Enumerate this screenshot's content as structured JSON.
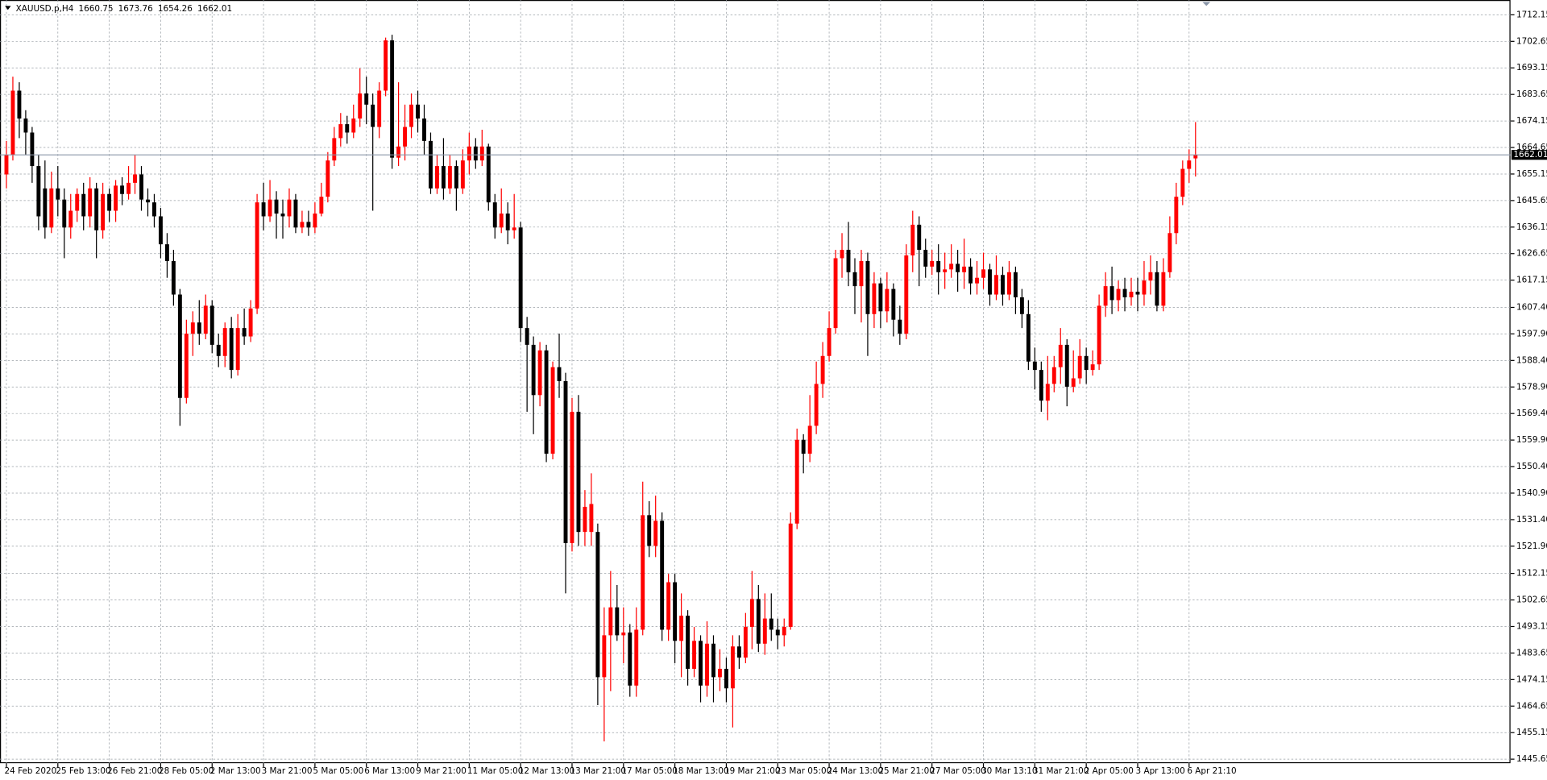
{
  "chart_data": {
    "type": "candlestick",
    "header": {
      "symbol": "XAUUSD.p,H4",
      "open": 1660.75,
      "high": 1673.76,
      "low": 1654.26,
      "close": 1662.01
    },
    "bull_color": "#ff0000",
    "bear_color": "#000000",
    "grid": true,
    "current_price": 1662.01,
    "current_price_color": "#8a96a8",
    "xlim": [
      -1,
      234
    ],
    "ylim": [
      1444.2,
      1717.45
    ],
    "yticks": [
      1712.15,
      1702.65,
      1693.15,
      1683.65,
      1674.15,
      1664.65,
      1655.15,
      1645.65,
      1636.15,
      1626.65,
      1617.15,
      {
        "value": 1607.4,
        "label": "1607.40"
      },
      {
        "value": 1597.9,
        "label": "1597.90"
      },
      {
        "value": 1588.4,
        "label": "1588.40"
      },
      {
        "value": 1578.9,
        "label": "1578.90"
      },
      {
        "value": 1569.4,
        "label": "1569.40"
      },
      {
        "value": 1559.9,
        "label": "1559.90"
      },
      {
        "value": 1550.4,
        "label": "1550.40"
      },
      {
        "value": 1540.9,
        "label": "1540.90"
      },
      {
        "value": 1531.4,
        "label": "1531.40"
      },
      {
        "value": 1521.9,
        "label": "1521.90"
      },
      1512.15,
      1502.65,
      1493.15,
      1483.65,
      1474.15,
      1464.65,
      1455.15,
      1445.65
    ],
    "xticks": [
      {
        "value": 0,
        "label": "24 Feb 2020"
      },
      {
        "value": 8,
        "label": "25 Feb 13:00"
      },
      {
        "value": 16,
        "label": "26 Feb 21:00"
      },
      {
        "value": 24,
        "label": "28 Feb 05:00"
      },
      {
        "value": 32,
        "label": "2 Mar 13:00"
      },
      {
        "value": 40,
        "label": "3 Mar 21:00"
      },
      {
        "value": 48,
        "label": "5 Mar 05:00"
      },
      {
        "value": 56,
        "label": "6 Mar 13:00"
      },
      {
        "value": 64,
        "label": "9 Mar 21:00"
      },
      {
        "value": 72,
        "label": "11 Mar 05:00"
      },
      {
        "value": 80,
        "label": "12 Mar 13:00"
      },
      {
        "value": 88,
        "label": "13 Mar 21:00"
      },
      {
        "value": 96,
        "label": "17 Mar 05:00"
      },
      {
        "value": 104,
        "label": "18 Mar 13:00"
      },
      {
        "value": 112,
        "label": "19 Mar 21:00"
      },
      {
        "value": 120,
        "label": "23 Mar 05:00"
      },
      {
        "value": 128,
        "label": "24 Mar 13:00"
      },
      {
        "value": 136,
        "label": "25 Mar 21:00"
      },
      {
        "value": 144,
        "label": "27 Mar 05:00"
      },
      {
        "value": 152,
        "label": "30 Mar 13:10"
      },
      {
        "value": 160,
        "label": "31 Mar 21:00"
      },
      {
        "value": 168,
        "label": "2 Apr 05:00"
      },
      {
        "value": 176,
        "label": "3 Apr 13:00"
      },
      {
        "value": 184,
        "label": "6 Apr 21:10"
      }
    ],
    "ohlc": [
      [
        1655,
        1667,
        1650,
        1662
      ],
      [
        1662,
        1690,
        1660,
        1685
      ],
      [
        1685,
        1688,
        1668,
        1675
      ],
      [
        1675,
        1678,
        1662,
        1670
      ],
      [
        1670,
        1672,
        1652,
        1658
      ],
      [
        1658,
        1662,
        1635,
        1640
      ],
      [
        1650,
        1660,
        1632,
        1636
      ],
      [
        1636,
        1656,
        1634,
        1650
      ],
      [
        1650,
        1658,
        1640,
        1646
      ],
      [
        1646,
        1650,
        1625,
        1636
      ],
      [
        1636,
        1648,
        1632,
        1642
      ],
      [
        1642,
        1650,
        1638,
        1648
      ],
      [
        1648,
        1652,
        1635,
        1640
      ],
      [
        1640,
        1654,
        1636,
        1650
      ],
      [
        1650,
        1652,
        1625,
        1635
      ],
      [
        1635,
        1652,
        1632,
        1648
      ],
      [
        1648,
        1650,
        1638,
        1642
      ],
      [
        1642,
        1653,
        1638,
        1651
      ],
      [
        1651,
        1654,
        1644,
        1648
      ],
      [
        1648,
        1658,
        1646,
        1652
      ],
      [
        1652,
        1662,
        1648,
        1655
      ],
      [
        1655,
        1658,
        1642,
        1646
      ],
      [
        1646,
        1650,
        1640,
        1645
      ],
      [
        1645,
        1648,
        1636,
        1640
      ],
      [
        1640,
        1643,
        1625,
        1630
      ],
      [
        1630,
        1634,
        1618,
        1624
      ],
      [
        1624,
        1628,
        1608,
        1612
      ],
      [
        1612,
        1614,
        1565,
        1575
      ],
      [
        1575,
        1603,
        1573,
        1598
      ],
      [
        1598,
        1606,
        1590,
        1602
      ],
      [
        1602,
        1610,
        1594,
        1598
      ],
      [
        1598,
        1612,
        1596,
        1608
      ],
      [
        1608,
        1610,
        1591,
        1594
      ],
      [
        1594,
        1598,
        1586,
        1590
      ],
      [
        1590,
        1602,
        1586,
        1600
      ],
      [
        1600,
        1604,
        1582,
        1585
      ],
      [
        1585,
        1605,
        1583,
        1600
      ],
      [
        1600,
        1607,
        1594,
        1597
      ],
      [
        1597,
        1610,
        1595,
        1607
      ],
      [
        1607,
        1648,
        1605,
        1645
      ],
      [
        1645,
        1652,
        1635,
        1640
      ],
      [
        1640,
        1653,
        1638,
        1646
      ],
      [
        1646,
        1649,
        1632,
        1641
      ],
      [
        1641,
        1646,
        1632,
        1640
      ],
      [
        1640,
        1650,
        1636,
        1646
      ],
      [
        1646,
        1648,
        1634,
        1636
      ],
      [
        1636,
        1642,
        1634,
        1638
      ],
      [
        1638,
        1642,
        1633,
        1636
      ],
      [
        1636,
        1645,
        1634,
        1641
      ],
      [
        1641,
        1652,
        1640,
        1647
      ],
      [
        1647,
        1663,
        1645,
        1660
      ],
      [
        1660,
        1672,
        1658,
        1668
      ],
      [
        1668,
        1677,
        1665,
        1673
      ],
      [
        1673,
        1676,
        1666,
        1670
      ],
      [
        1670,
        1680,
        1668,
        1675
      ],
      [
        1675,
        1693,
        1672,
        1684
      ],
      [
        1684,
        1690,
        1673,
        1680
      ],
      [
        1680,
        1684,
        1642,
        1672
      ],
      [
        1672,
        1688,
        1668,
        1685
      ],
      [
        1685,
        1704,
        1683,
        1703
      ],
      [
        1703,
        1705,
        1657,
        1661
      ],
      [
        1661,
        1688,
        1658,
        1665
      ],
      [
        1665,
        1680,
        1660,
        1672
      ],
      [
        1672,
        1684,
        1668,
        1680
      ],
      [
        1680,
        1685,
        1670,
        1675
      ],
      [
        1675,
        1680,
        1662,
        1667
      ],
      [
        1667,
        1670,
        1648,
        1650
      ],
      [
        1650,
        1662,
        1648,
        1658
      ],
      [
        1658,
        1668,
        1646,
        1650
      ],
      [
        1650,
        1662,
        1648,
        1658
      ],
      [
        1658,
        1660,
        1642,
        1650
      ],
      [
        1650,
        1664,
        1648,
        1660
      ],
      [
        1660,
        1670,
        1655,
        1665
      ],
      [
        1665,
        1668,
        1657,
        1660
      ],
      [
        1660,
        1671,
        1658,
        1665
      ],
      [
        1665,
        1666,
        1642,
        1645
      ],
      [
        1645,
        1648,
        1632,
        1636
      ],
      [
        1636,
        1650,
        1634,
        1641
      ],
      [
        1641,
        1645,
        1630,
        1635
      ],
      [
        1635,
        1648,
        1632,
        1636
      ],
      [
        1636,
        1638,
        1595,
        1600
      ],
      [
        1600,
        1604,
        1570,
        1594
      ],
      [
        1594,
        1597,
        1562,
        1576
      ],
      [
        1576,
        1595,
        1572,
        1592
      ],
      [
        1592,
        1594,
        1552,
        1555
      ],
      [
        1555,
        1588,
        1553,
        1586
      ],
      [
        1586,
        1598,
        1575,
        1581
      ],
      [
        1581,
        1584,
        1505,
        1523
      ],
      [
        1523,
        1575,
        1520,
        1570
      ],
      [
        1570,
        1576,
        1522,
        1527
      ],
      [
        1527,
        1542,
        1522,
        1536
      ],
      [
        1527,
        1548,
        1522,
        1537
      ],
      [
        1527,
        1530,
        1465,
        1475
      ],
      [
        1475,
        1500,
        1452,
        1490
      ],
      [
        1490,
        1513,
        1470,
        1500
      ],
      [
        1500,
        1508,
        1488,
        1490
      ],
      [
        1490,
        1500,
        1480,
        1491
      ],
      [
        1491,
        1494,
        1468,
        1472
      ],
      [
        1472,
        1500,
        1468,
        1492
      ],
      [
        1492,
        1545,
        1490,
        1533
      ],
      [
        1533,
        1538,
        1518,
        1522
      ],
      [
        1522,
        1540,
        1518,
        1531
      ],
      [
        1531,
        1534,
        1488,
        1492
      ],
      [
        1492,
        1512,
        1488,
        1509
      ],
      [
        1509,
        1512,
        1480,
        1488
      ],
      [
        1488,
        1505,
        1475,
        1497
      ],
      [
        1497,
        1499,
        1472,
        1478
      ],
      [
        1478,
        1493,
        1475,
        1488
      ],
      [
        1488,
        1490,
        1466,
        1472
      ],
      [
        1472,
        1495,
        1468,
        1487
      ],
      [
        1487,
        1490,
        1466,
        1475
      ],
      [
        1475,
        1485,
        1470,
        1478
      ],
      [
        1478,
        1482,
        1466,
        1471
      ],
      [
        1471,
        1490,
        1457,
        1486
      ],
      [
        1486,
        1490,
        1478,
        1482
      ],
      [
        1482,
        1498,
        1480,
        1493
      ],
      [
        1493,
        1513,
        1485,
        1503
      ],
      [
        1503,
        1508,
        1484,
        1487
      ],
      [
        1487,
        1505,
        1483,
        1496
      ],
      [
        1496,
        1505,
        1488,
        1492
      ],
      [
        1492,
        1496,
        1485,
        1490
      ],
      [
        1490,
        1496,
        1486,
        1493
      ],
      [
        1493,
        1534,
        1492,
        1530
      ],
      [
        1530,
        1564,
        1528,
        1560
      ],
      [
        1560,
        1562,
        1548,
        1555
      ],
      [
        1555,
        1576,
        1552,
        1565
      ],
      [
        1565,
        1588,
        1562,
        1580
      ],
      [
        1580,
        1595,
        1575,
        1590
      ],
      [
        1590,
        1606,
        1588,
        1600
      ],
      [
        1600,
        1628,
        1598,
        1625
      ],
      [
        1625,
        1634,
        1618,
        1628
      ],
      [
        1628,
        1638,
        1615,
        1620
      ],
      [
        1620,
        1625,
        1605,
        1615
      ],
      [
        1615,
        1628,
        1602,
        1624
      ],
      [
        1624,
        1627,
        1590,
        1605
      ],
      [
        1605,
        1620,
        1600,
        1616
      ],
      [
        1616,
        1618,
        1600,
        1606
      ],
      [
        1606,
        1620,
        1602,
        1614
      ],
      [
        1614,
        1616,
        1597,
        1603
      ],
      [
        1603,
        1608,
        1594,
        1598
      ],
      [
        1598,
        1630,
        1596,
        1626
      ],
      [
        1626,
        1642,
        1620,
        1637
      ],
      [
        1637,
        1640,
        1615,
        1628
      ],
      [
        1628,
        1632,
        1618,
        1622
      ],
      [
        1622,
        1628,
        1619,
        1624
      ],
      [
        1624,
        1630,
        1612,
        1620
      ],
      [
        1620,
        1627,
        1614,
        1621
      ],
      [
        1621,
        1630,
        1618,
        1623
      ],
      [
        1623,
        1628,
        1613,
        1620
      ],
      [
        1620,
        1632,
        1614,
        1622
      ],
      [
        1622,
        1625,
        1612,
        1616
      ],
      [
        1616,
        1624,
        1612,
        1618
      ],
      [
        1618,
        1627,
        1614,
        1621
      ],
      [
        1621,
        1623,
        1608,
        1612
      ],
      [
        1612,
        1626,
        1610,
        1619
      ],
      [
        1619,
        1622,
        1608,
        1612
      ],
      [
        1612,
        1624,
        1610,
        1620
      ],
      [
        1620,
        1622,
        1605,
        1611
      ],
      [
        1611,
        1614,
        1600,
        1605
      ],
      [
        1605,
        1610,
        1585,
        1588
      ],
      [
        1588,
        1593,
        1578,
        1585
      ],
      [
        1585,
        1588,
        1570,
        1574
      ],
      [
        1574,
        1590,
        1567,
        1580
      ],
      [
        1580,
        1590,
        1577,
        1586
      ],
      [
        1586,
        1600,
        1580,
        1594
      ],
      [
        1594,
        1596,
        1572,
        1579
      ],
      [
        1579,
        1592,
        1577,
        1582
      ],
      [
        1582,
        1596,
        1580,
        1590
      ],
      [
        1590,
        1593,
        1580,
        1585
      ],
      [
        1585,
        1592,
        1583,
        1587
      ],
      [
        1587,
        1612,
        1585,
        1608
      ],
      [
        1608,
        1620,
        1604,
        1615
      ],
      [
        1615,
        1622,
        1605,
        1610
      ],
      [
        1610,
        1617,
        1606,
        1614
      ],
      [
        1614,
        1618,
        1606,
        1611
      ],
      [
        1611,
        1618,
        1608,
        1613
      ],
      [
        1613,
        1618,
        1606,
        1612
      ],
      [
        1612,
        1624,
        1608,
        1617
      ],
      [
        1617,
        1626,
        1612,
        1620
      ],
      [
        1620,
        1624,
        1606,
        1608
      ],
      [
        1608,
        1625,
        1606,
        1620
      ],
      [
        1620,
        1640,
        1618,
        1634
      ],
      [
        1634,
        1652,
        1630,
        1647
      ],
      [
        1647,
        1660,
        1644,
        1657
      ],
      [
        1657,
        1664,
        1652,
        1660
      ],
      [
        1660.75,
        1673.76,
        1654.26,
        1662.01
      ]
    ]
  }
}
